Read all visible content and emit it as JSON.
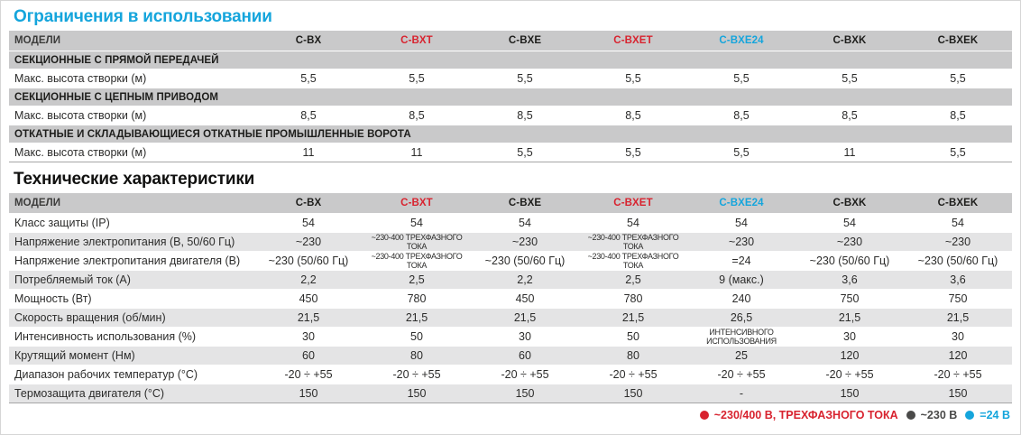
{
  "colors": {
    "accent_cyan": "#15a5dc",
    "accent_red": "#d8232f",
    "model_default": "#1d1d1b",
    "header_band_gray": "#c9c9ca",
    "alt_row_gray": "#e4e4e5",
    "legend_dark": "#4a4a49"
  },
  "limits": {
    "title": "Ограничения в использовании",
    "models_header_label": "МОДЕЛИ",
    "models": [
      {
        "name": "C-BX",
        "color": "#1d1d1b"
      },
      {
        "name": "C-BXT",
        "color": "#d8232f"
      },
      {
        "name": "C-BXE",
        "color": "#1d1d1b"
      },
      {
        "name": "C-BXET",
        "color": "#d8232f"
      },
      {
        "name": "C-BXE24",
        "color": "#15a5dc"
      },
      {
        "name": "C-BXK",
        "color": "#1d1d1b"
      },
      {
        "name": "C-BXEK",
        "color": "#1d1d1b"
      }
    ],
    "rows": [
      {
        "type": "section",
        "label": "СЕКЦИОННЫЕ С ПРЯМОЙ ПЕРЕДАЧЕЙ"
      },
      {
        "type": "data",
        "label": "Макс. высота створки (м)",
        "values": [
          "5,5",
          "5,5",
          "5,5",
          "5,5",
          "5,5",
          "5,5",
          "5,5"
        ]
      },
      {
        "type": "section",
        "label": "СЕКЦИОННЫЕ С ЦЕПНЫМ ПРИВОДОМ"
      },
      {
        "type": "data",
        "label": "Макс. высота створки (м)",
        "values": [
          "8,5",
          "8,5",
          "8,5",
          "8,5",
          "8,5",
          "8,5",
          "8,5"
        ]
      },
      {
        "type": "section",
        "label": "ОТКАТНЫЕ И СКЛАДЫВАЮЩИЕСЯ ОТКАТНЫЕ ПРОМЫШЛЕННЫЕ ВОРОТА"
      },
      {
        "type": "data",
        "label": "Макс. высота створки (м)",
        "values": [
          "11",
          "11",
          "5,5",
          "5,5",
          "5,5",
          "11",
          "5,5"
        ]
      }
    ]
  },
  "specs": {
    "title": "Технические характеристики",
    "models_header_label": "МОДЕЛИ",
    "models": [
      {
        "name": "C-BX",
        "color": "#1d1d1b"
      },
      {
        "name": "C-BXT",
        "color": "#d8232f"
      },
      {
        "name": "C-BXE",
        "color": "#1d1d1b"
      },
      {
        "name": "C-BXET",
        "color": "#d8232f"
      },
      {
        "name": "C-BXE24",
        "color": "#15a5dc"
      },
      {
        "name": "C-BXK",
        "color": "#1d1d1b"
      },
      {
        "name": "C-BXEK",
        "color": "#1d1d1b"
      }
    ],
    "rows": [
      {
        "type": "data",
        "label": "Класс защиты (IP)",
        "values": [
          "54",
          "54",
          "54",
          "54",
          "54",
          "54",
          "54"
        ]
      },
      {
        "type": "data",
        "label": "Напряжение электропитания (В, 50/60 Гц)",
        "values": [
          "~230",
          "~230-400 ТРЕХФАЗНОГО ТОКА",
          "~230",
          "~230-400 ТРЕХФАЗНОГО ТОКА",
          "~230",
          "~230",
          "~230"
        ]
      },
      {
        "type": "data",
        "label": "Напряжение электропитания двигателя (В)",
        "values": [
          "~230 (50/60 Гц)",
          "~230-400 ТРЕХФАЗНОГО ТОКА",
          "~230 (50/60 Гц)",
          "~230-400 ТРЕХФАЗНОГО ТОКА",
          "=24",
          "~230 (50/60 Гц)",
          "~230 (50/60 Гц)"
        ]
      },
      {
        "type": "data",
        "label": "Потребляемый ток (А)",
        "values": [
          "2,2",
          "2,5",
          "2,2",
          "2,5",
          "9 (макс.)",
          "3,6",
          "3,6"
        ]
      },
      {
        "type": "data",
        "label": "Мощность (Вт)",
        "values": [
          "450",
          "780",
          "450",
          "780",
          "240",
          "750",
          "750"
        ]
      },
      {
        "type": "data",
        "label": "Скорость вращения (об/мин)",
        "values": [
          "21,5",
          "21,5",
          "21,5",
          "21,5",
          "26,5",
          "21,5",
          "21,5"
        ]
      },
      {
        "type": "data",
        "label": "Интенсивность использования (%)",
        "values": [
          "30",
          "50",
          "30",
          "50",
          "ИНТЕНСИВНОГО\nИСПОЛЬЗОВАНИЯ",
          "30",
          "30"
        ]
      },
      {
        "type": "data",
        "label": "Крутящий момент (Нм)",
        "values": [
          "60",
          "80",
          "60",
          "80",
          "25",
          "120",
          "120"
        ]
      },
      {
        "type": "data",
        "label": "Диапазон рабочих температур (°C)",
        "values": [
          "-20 ÷ +55",
          "-20 ÷ +55",
          "-20 ÷ +55",
          "-20 ÷ +55",
          "-20 ÷ +55",
          "-20 ÷ +55",
          "-20 ÷ +55"
        ]
      },
      {
        "type": "data",
        "label": "Термозащита двигателя (°C)",
        "values": [
          "150",
          "150",
          "150",
          "150",
          "-",
          "150",
          "150"
        ]
      }
    ]
  },
  "legend": {
    "items": [
      {
        "label": "~230/400 В, ТРЕХФАЗНОГО ТОКА",
        "color": "#d8232f"
      },
      {
        "label": "~230 В",
        "color": "#4a4a49"
      },
      {
        "label": "=24 В",
        "color": "#15a5dc"
      }
    ]
  }
}
